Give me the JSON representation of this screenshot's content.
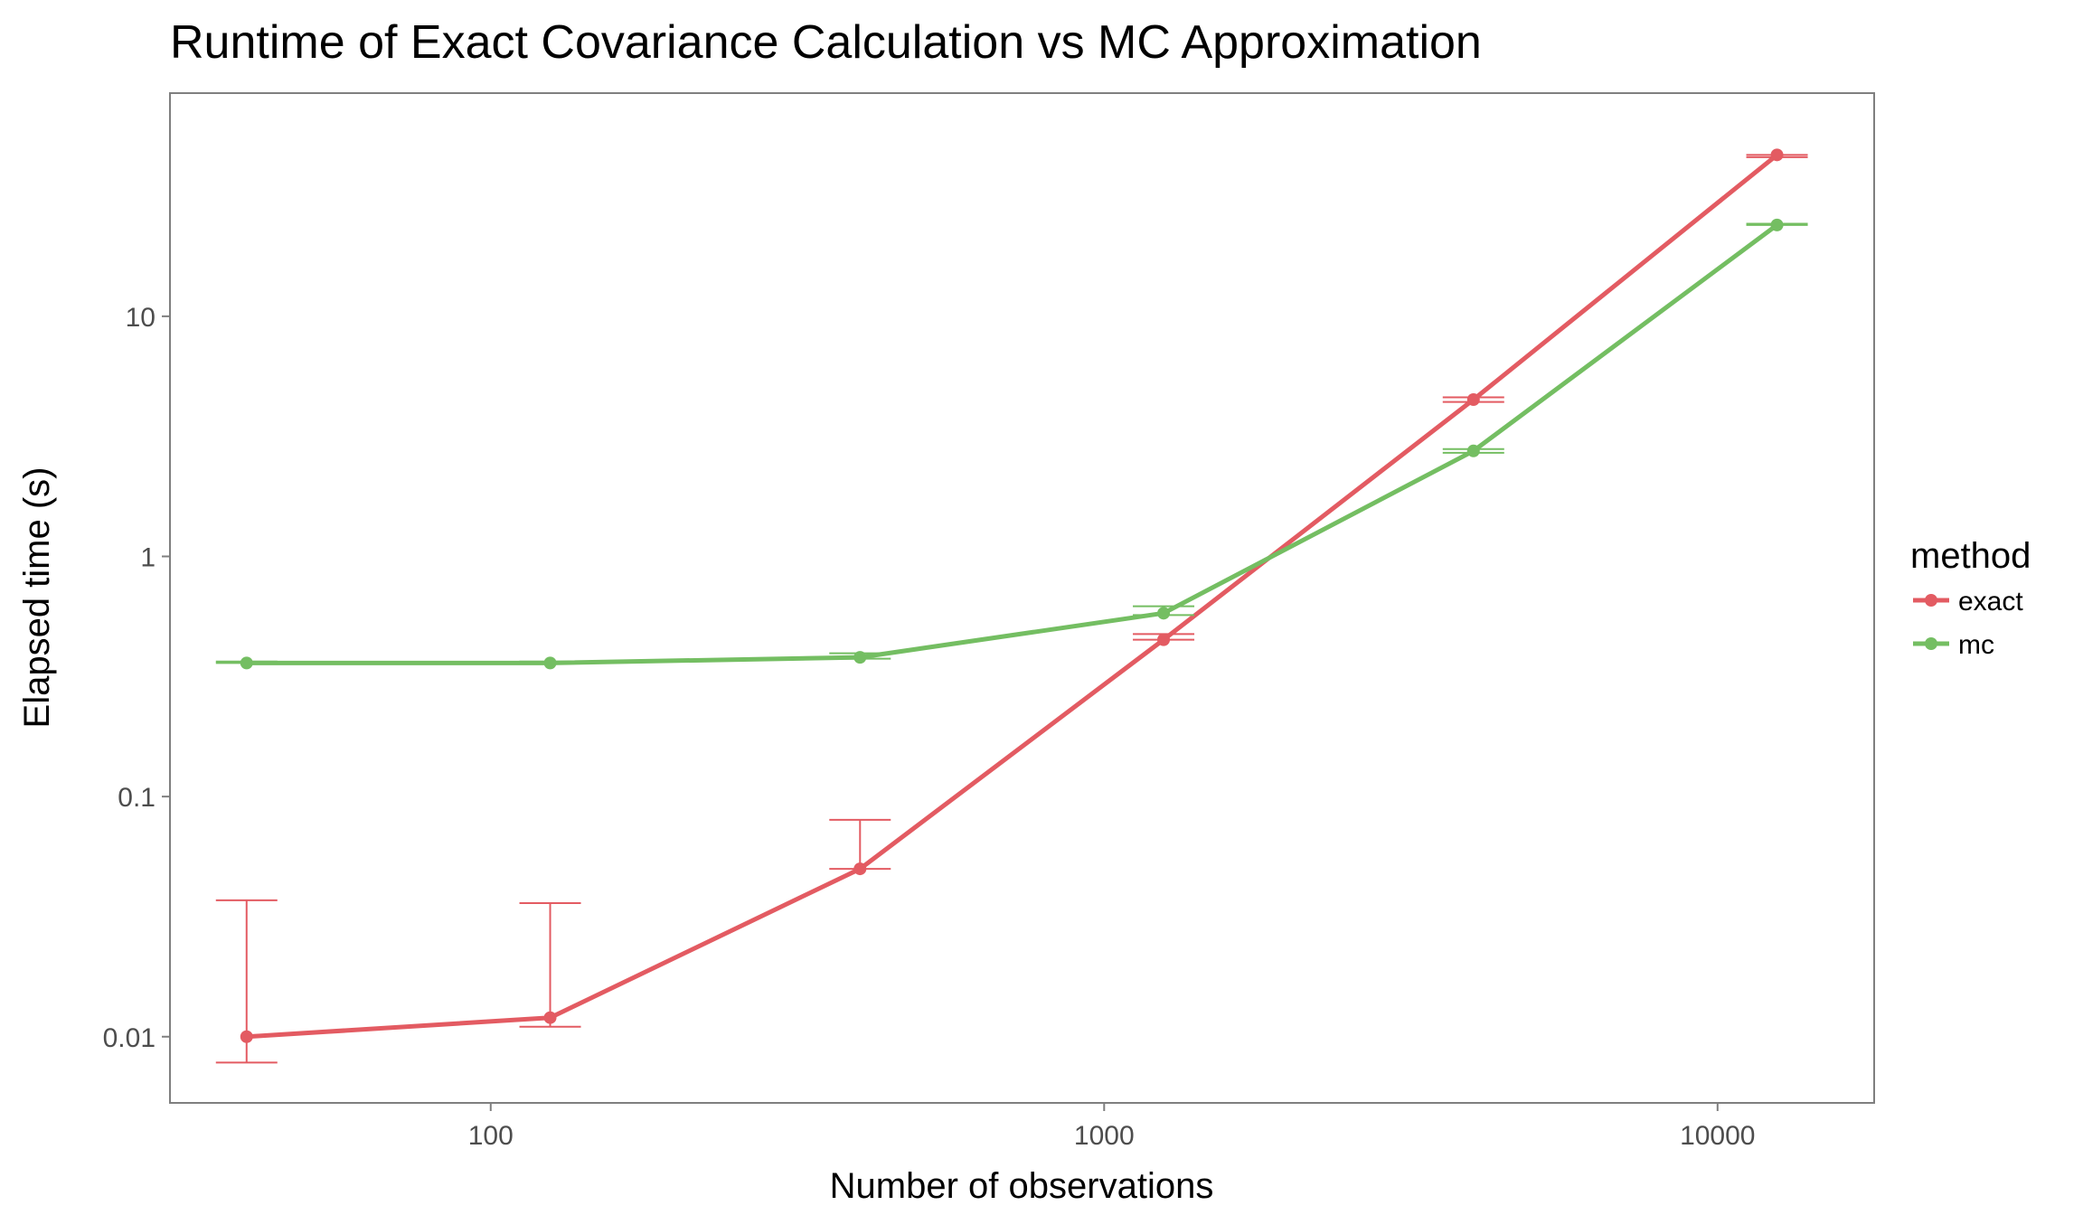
{
  "chart_data": {
    "type": "line",
    "title": "Runtime of Exact Covariance Calculation vs MC Approximation",
    "xlabel": "Number of observations",
    "ylabel": "Elapsed time (s)",
    "x_scale": "log",
    "y_scale": "log",
    "xlim": [
      30,
      18000
    ],
    "ylim": [
      0.0053,
      85
    ],
    "x_ticks": [
      100,
      1000,
      10000
    ],
    "x_tick_labels": [
      "100",
      "1000",
      "10000"
    ],
    "y_ticks": [
      0.01,
      0.1,
      1,
      10
    ],
    "y_tick_labels": [
      "0.01",
      "0.1",
      "1",
      "10"
    ],
    "grid": false,
    "legend_title": "method",
    "legend_position": "right",
    "series": [
      {
        "name": "exact",
        "color": "#E35B62",
        "x": [
          40,
          125,
          400,
          1250,
          4000,
          12500
        ],
        "y": [
          0.01,
          0.012,
          0.05,
          0.45,
          4.5,
          47
        ],
        "err_low": [
          0.0078,
          0.011,
          0.05,
          0.45,
          4.4,
          46
        ],
        "err_high": [
          0.037,
          0.036,
          0.08,
          0.475,
          4.6,
          47
        ]
      },
      {
        "name": "mc",
        "color": "#74BE62",
        "x": [
          40,
          125,
          400,
          1250,
          4000,
          12500
        ],
        "y": [
          0.36,
          0.36,
          0.38,
          0.58,
          2.75,
          24
        ],
        "err_low": [
          0.36,
          0.36,
          0.375,
          0.57,
          2.7,
          24
        ],
        "err_high": [
          0.365,
          0.365,
          0.395,
          0.62,
          2.8,
          24.3
        ]
      }
    ]
  }
}
